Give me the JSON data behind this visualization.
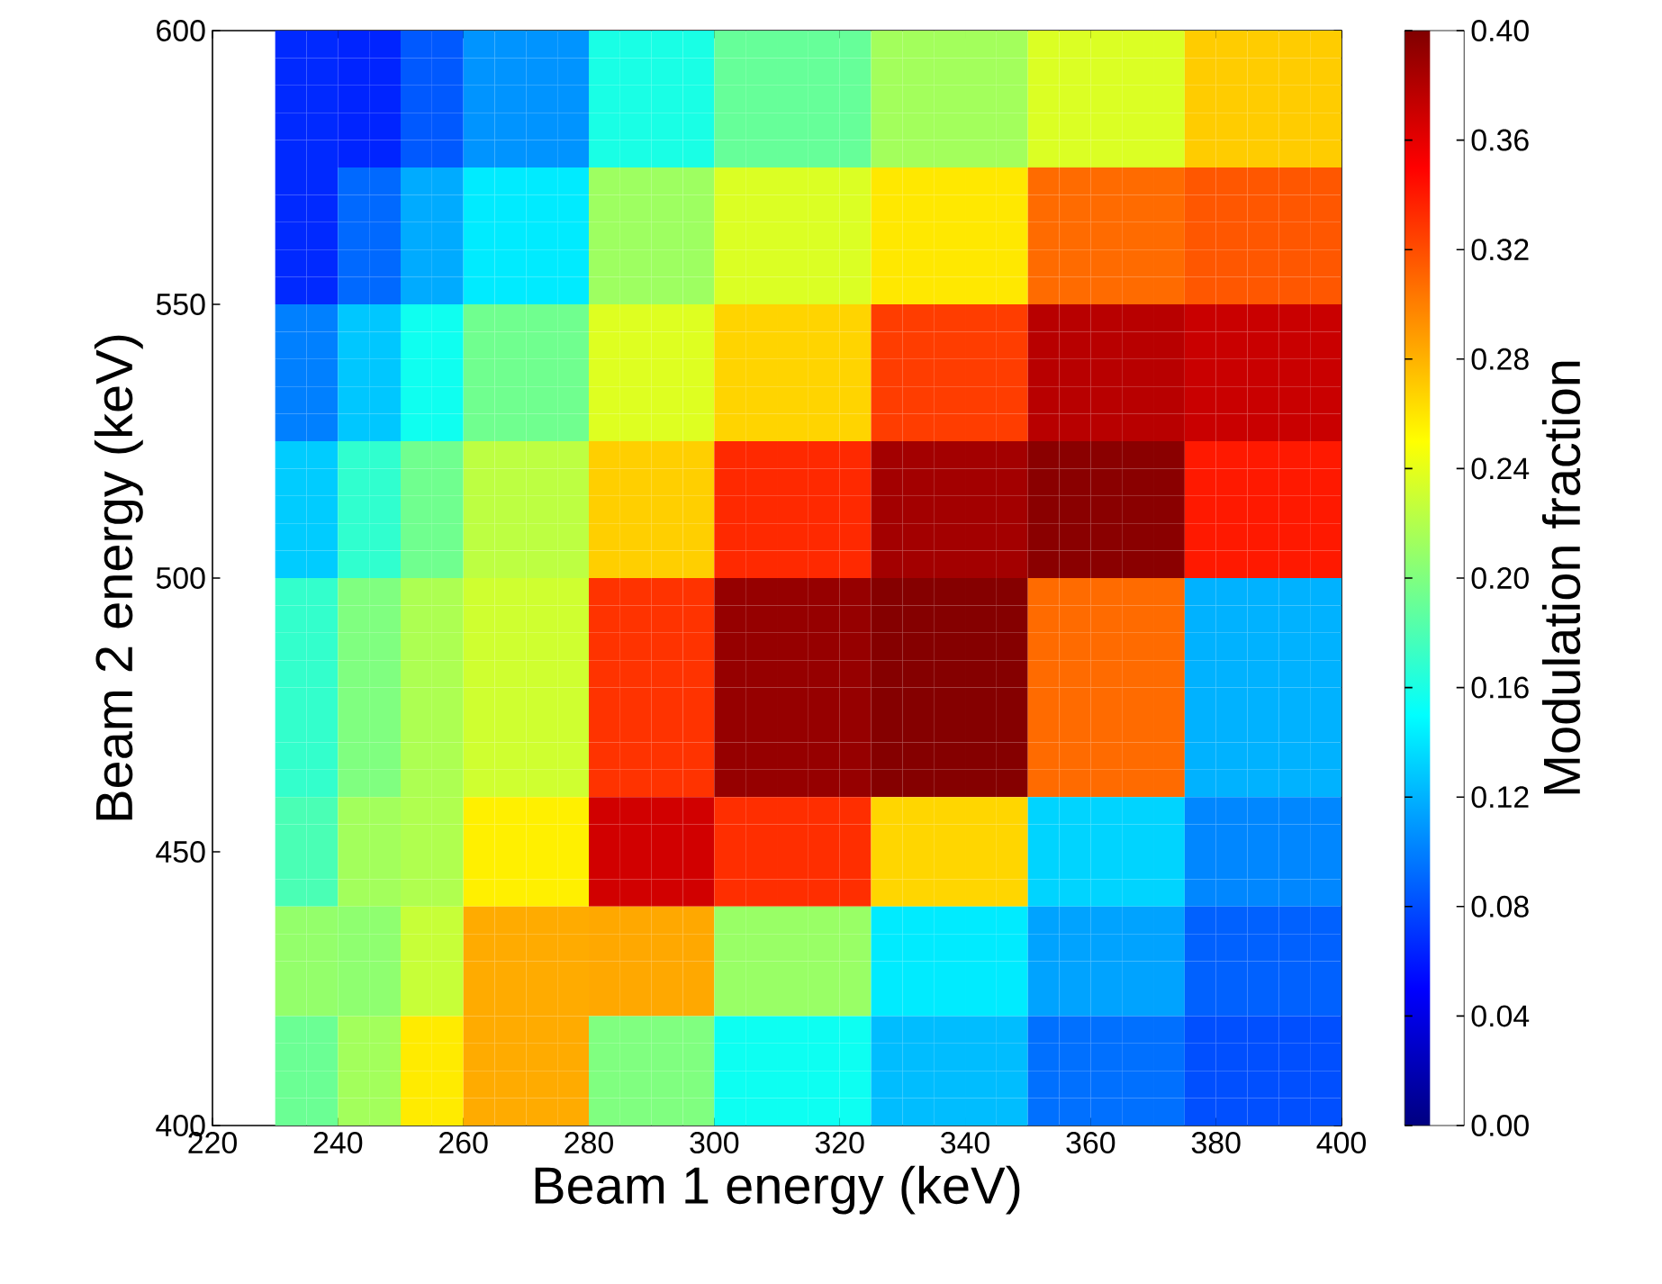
{
  "chart_data": {
    "type": "heatmap",
    "xlabel": "Beam 1 energy (keV)",
    "ylabel": "Beam 2 energy (keV)",
    "clabel": "Modulation fraction",
    "cells": [
      [
        null,
        null,
        0.066,
        0.066,
        0.064,
        0.064,
        0.085,
        0.085,
        0.108,
        0.108,
        0.108,
        0.108,
        0.16,
        0.16,
        0.16,
        0.16,
        0.19,
        0.19,
        0.19,
        0.19,
        0.19,
        0.214,
        0.214,
        0.214,
        0.214,
        0.214,
        0.236,
        0.236,
        0.236,
        0.236,
        0.236,
        0.27,
        0.27,
        0.27,
        0.27,
        0.27
      ],
      [
        null,
        null,
        0.066,
        0.066,
        0.064,
        0.064,
        0.085,
        0.085,
        0.108,
        0.108,
        0.108,
        0.108,
        0.16,
        0.16,
        0.16,
        0.16,
        0.19,
        0.19,
        0.19,
        0.19,
        0.19,
        0.214,
        0.214,
        0.214,
        0.214,
        0.214,
        0.236,
        0.236,
        0.236,
        0.236,
        0.236,
        0.27,
        0.27,
        0.27,
        0.27,
        0.27
      ],
      [
        null,
        null,
        0.066,
        0.066,
        0.064,
        0.064,
        0.085,
        0.085,
        0.108,
        0.108,
        0.108,
        0.108,
        0.16,
        0.16,
        0.16,
        0.16,
        0.19,
        0.19,
        0.19,
        0.19,
        0.19,
        0.214,
        0.214,
        0.214,
        0.214,
        0.214,
        0.236,
        0.236,
        0.236,
        0.236,
        0.236,
        0.27,
        0.27,
        0.27,
        0.27,
        0.27
      ],
      [
        null,
        null,
        0.066,
        0.066,
        0.064,
        0.064,
        0.085,
        0.085,
        0.108,
        0.108,
        0.108,
        0.108,
        0.16,
        0.16,
        0.16,
        0.16,
        0.19,
        0.19,
        0.19,
        0.19,
        0.19,
        0.214,
        0.214,
        0.214,
        0.214,
        0.214,
        0.236,
        0.236,
        0.236,
        0.236,
        0.236,
        0.27,
        0.27,
        0.27,
        0.27,
        0.27
      ],
      [
        null,
        null,
        0.066,
        0.066,
        0.064,
        0.064,
        0.085,
        0.085,
        0.108,
        0.108,
        0.108,
        0.108,
        0.16,
        0.16,
        0.16,
        0.16,
        0.19,
        0.19,
        0.19,
        0.19,
        0.19,
        0.214,
        0.214,
        0.214,
        0.214,
        0.214,
        0.236,
        0.236,
        0.236,
        0.236,
        0.236,
        0.27,
        0.27,
        0.27,
        0.27,
        0.27
      ],
      [
        null,
        null,
        0.066,
        0.066,
        0.091,
        0.091,
        0.117,
        0.117,
        0.142,
        0.142,
        0.142,
        0.142,
        0.212,
        0.212,
        0.212,
        0.212,
        0.236,
        0.236,
        0.236,
        0.236,
        0.236,
        0.259,
        0.259,
        0.259,
        0.259,
        0.259,
        0.308,
        0.308,
        0.308,
        0.308,
        0.308,
        0.316,
        0.316,
        0.316,
        0.316,
        0.316
      ],
      [
        null,
        null,
        0.066,
        0.066,
        0.091,
        0.091,
        0.117,
        0.117,
        0.142,
        0.142,
        0.142,
        0.142,
        0.212,
        0.212,
        0.212,
        0.212,
        0.236,
        0.236,
        0.236,
        0.236,
        0.236,
        0.259,
        0.259,
        0.259,
        0.259,
        0.259,
        0.308,
        0.308,
        0.308,
        0.308,
        0.308,
        0.316,
        0.316,
        0.316,
        0.316,
        0.316
      ],
      [
        null,
        null,
        0.066,
        0.066,
        0.091,
        0.091,
        0.117,
        0.117,
        0.142,
        0.142,
        0.142,
        0.142,
        0.212,
        0.212,
        0.212,
        0.212,
        0.236,
        0.236,
        0.236,
        0.236,
        0.236,
        0.259,
        0.259,
        0.259,
        0.259,
        0.259,
        0.308,
        0.308,
        0.308,
        0.308,
        0.308,
        0.316,
        0.316,
        0.316,
        0.316,
        0.316
      ],
      [
        null,
        null,
        0.066,
        0.066,
        0.091,
        0.091,
        0.117,
        0.117,
        0.142,
        0.142,
        0.142,
        0.142,
        0.212,
        0.212,
        0.212,
        0.212,
        0.236,
        0.236,
        0.236,
        0.236,
        0.236,
        0.259,
        0.259,
        0.259,
        0.259,
        0.259,
        0.308,
        0.308,
        0.308,
        0.308,
        0.308,
        0.316,
        0.316,
        0.316,
        0.316,
        0.316
      ],
      [
        null,
        null,
        0.066,
        0.066,
        0.091,
        0.091,
        0.117,
        0.117,
        0.142,
        0.142,
        0.142,
        0.142,
        0.212,
        0.212,
        0.212,
        0.212,
        0.236,
        0.236,
        0.236,
        0.236,
        0.236,
        0.259,
        0.259,
        0.259,
        0.259,
        0.259,
        0.308,
        0.308,
        0.308,
        0.308,
        0.308,
        0.316,
        0.316,
        0.316,
        0.316,
        0.316
      ],
      [
        null,
        null,
        0.1,
        0.1,
        0.128,
        0.128,
        0.156,
        0.156,
        0.194,
        0.194,
        0.194,
        0.194,
        0.237,
        0.237,
        0.237,
        0.237,
        0.267,
        0.267,
        0.267,
        0.267,
        0.267,
        0.326,
        0.326,
        0.326,
        0.326,
        0.326,
        0.378,
        0.378,
        0.378,
        0.378,
        0.378,
        0.371,
        0.371,
        0.371,
        0.371,
        0.371
      ],
      [
        null,
        null,
        0.1,
        0.1,
        0.128,
        0.128,
        0.156,
        0.156,
        0.194,
        0.194,
        0.194,
        0.194,
        0.237,
        0.237,
        0.237,
        0.237,
        0.267,
        0.267,
        0.267,
        0.267,
        0.267,
        0.326,
        0.326,
        0.326,
        0.326,
        0.326,
        0.378,
        0.378,
        0.378,
        0.378,
        0.378,
        0.371,
        0.371,
        0.371,
        0.371,
        0.371
      ],
      [
        null,
        null,
        0.1,
        0.1,
        0.128,
        0.128,
        0.156,
        0.156,
        0.194,
        0.194,
        0.194,
        0.194,
        0.237,
        0.237,
        0.237,
        0.237,
        0.267,
        0.267,
        0.267,
        0.267,
        0.267,
        0.326,
        0.326,
        0.326,
        0.326,
        0.326,
        0.378,
        0.378,
        0.378,
        0.378,
        0.378,
        0.371,
        0.371,
        0.371,
        0.371,
        0.371
      ],
      [
        null,
        null,
        0.1,
        0.1,
        0.128,
        0.128,
        0.156,
        0.156,
        0.194,
        0.194,
        0.194,
        0.194,
        0.237,
        0.237,
        0.237,
        0.237,
        0.267,
        0.267,
        0.267,
        0.267,
        0.267,
        0.326,
        0.326,
        0.326,
        0.326,
        0.326,
        0.378,
        0.378,
        0.378,
        0.378,
        0.378,
        0.371,
        0.371,
        0.371,
        0.371,
        0.371
      ],
      [
        null,
        null,
        0.1,
        0.1,
        0.128,
        0.128,
        0.156,
        0.156,
        0.194,
        0.194,
        0.194,
        0.194,
        0.237,
        0.237,
        0.237,
        0.237,
        0.267,
        0.267,
        0.267,
        0.267,
        0.267,
        0.326,
        0.326,
        0.326,
        0.326,
        0.326,
        0.378,
        0.378,
        0.378,
        0.378,
        0.378,
        0.371,
        0.371,
        0.371,
        0.371,
        0.371
      ],
      [
        null,
        null,
        0.13,
        0.13,
        0.169,
        0.169,
        0.194,
        0.194,
        0.224,
        0.224,
        0.224,
        0.224,
        0.269,
        0.269,
        0.269,
        0.269,
        0.334,
        0.334,
        0.334,
        0.334,
        0.334,
        0.386,
        0.386,
        0.386,
        0.386,
        0.386,
        0.396,
        0.396,
        0.396,
        0.396,
        0.396,
        0.34,
        0.34,
        0.34,
        0.34,
        0.34
      ],
      [
        null,
        null,
        0.13,
        0.13,
        0.169,
        0.169,
        0.194,
        0.194,
        0.224,
        0.224,
        0.224,
        0.224,
        0.269,
        0.269,
        0.269,
        0.269,
        0.334,
        0.334,
        0.334,
        0.334,
        0.334,
        0.386,
        0.386,
        0.386,
        0.386,
        0.386,
        0.396,
        0.396,
        0.396,
        0.396,
        0.396,
        0.34,
        0.34,
        0.34,
        0.34,
        0.34
      ],
      [
        null,
        null,
        0.13,
        0.13,
        0.169,
        0.169,
        0.194,
        0.194,
        0.224,
        0.224,
        0.224,
        0.224,
        0.269,
        0.269,
        0.269,
        0.269,
        0.334,
        0.334,
        0.334,
        0.334,
        0.334,
        0.386,
        0.386,
        0.386,
        0.386,
        0.386,
        0.396,
        0.396,
        0.396,
        0.396,
        0.396,
        0.34,
        0.34,
        0.34,
        0.34,
        0.34
      ],
      [
        null,
        null,
        0.13,
        0.13,
        0.169,
        0.169,
        0.194,
        0.194,
        0.224,
        0.224,
        0.224,
        0.224,
        0.269,
        0.269,
        0.269,
        0.269,
        0.334,
        0.334,
        0.334,
        0.334,
        0.334,
        0.386,
        0.386,
        0.386,
        0.386,
        0.386,
        0.396,
        0.396,
        0.396,
        0.396,
        0.396,
        0.34,
        0.34,
        0.34,
        0.34,
        0.34
      ],
      [
        null,
        null,
        0.13,
        0.13,
        0.169,
        0.169,
        0.194,
        0.194,
        0.224,
        0.224,
        0.224,
        0.224,
        0.269,
        0.269,
        0.269,
        0.269,
        0.334,
        0.334,
        0.334,
        0.334,
        0.334,
        0.386,
        0.386,
        0.386,
        0.386,
        0.386,
        0.396,
        0.396,
        0.396,
        0.396,
        0.396,
        0.34,
        0.34,
        0.34,
        0.34,
        0.34
      ],
      [
        null,
        null,
        0.17,
        0.17,
        0.2,
        0.2,
        0.218,
        0.218,
        0.231,
        0.231,
        0.231,
        0.231,
        0.33,
        0.33,
        0.33,
        0.33,
        0.391,
        0.391,
        0.391,
        0.391,
        0.391,
        0.398,
        0.398,
        0.398,
        0.398,
        0.398,
        0.308,
        0.308,
        0.308,
        0.308,
        0.308,
        0.12,
        0.12,
        0.12,
        0.12,
        0.12
      ],
      [
        null,
        null,
        0.17,
        0.17,
        0.2,
        0.2,
        0.218,
        0.218,
        0.231,
        0.231,
        0.231,
        0.231,
        0.33,
        0.33,
        0.33,
        0.33,
        0.391,
        0.391,
        0.391,
        0.391,
        0.391,
        0.398,
        0.398,
        0.398,
        0.398,
        0.398,
        0.308,
        0.308,
        0.308,
        0.308,
        0.308,
        0.12,
        0.12,
        0.12,
        0.12,
        0.12
      ],
      [
        null,
        null,
        0.17,
        0.17,
        0.2,
        0.2,
        0.218,
        0.218,
        0.231,
        0.231,
        0.231,
        0.231,
        0.33,
        0.33,
        0.33,
        0.33,
        0.391,
        0.391,
        0.391,
        0.391,
        0.391,
        0.398,
        0.398,
        0.398,
        0.398,
        0.398,
        0.308,
        0.308,
        0.308,
        0.308,
        0.308,
        0.12,
        0.12,
        0.12,
        0.12,
        0.12
      ],
      [
        null,
        null,
        0.17,
        0.17,
        0.2,
        0.2,
        0.218,
        0.218,
        0.231,
        0.231,
        0.231,
        0.231,
        0.33,
        0.33,
        0.33,
        0.33,
        0.391,
        0.391,
        0.391,
        0.391,
        0.391,
        0.398,
        0.398,
        0.398,
        0.398,
        0.398,
        0.308,
        0.308,
        0.308,
        0.308,
        0.308,
        0.12,
        0.12,
        0.12,
        0.12,
        0.12
      ],
      [
        null,
        null,
        0.17,
        0.17,
        0.2,
        0.2,
        0.218,
        0.218,
        0.231,
        0.231,
        0.231,
        0.231,
        0.33,
        0.33,
        0.33,
        0.33,
        0.391,
        0.391,
        0.391,
        0.391,
        0.391,
        0.398,
        0.398,
        0.398,
        0.398,
        0.398,
        0.308,
        0.308,
        0.308,
        0.308,
        0.308,
        0.12,
        0.12,
        0.12,
        0.12,
        0.12
      ],
      [
        null,
        null,
        0.17,
        0.17,
        0.2,
        0.2,
        0.218,
        0.218,
        0.231,
        0.231,
        0.231,
        0.231,
        0.33,
        0.33,
        0.33,
        0.33,
        0.391,
        0.391,
        0.391,
        0.391,
        0.391,
        0.398,
        0.398,
        0.398,
        0.398,
        0.398,
        0.308,
        0.308,
        0.308,
        0.308,
        0.308,
        0.12,
        0.12,
        0.12,
        0.12,
        0.12
      ],
      [
        null,
        null,
        0.17,
        0.17,
        0.2,
        0.2,
        0.218,
        0.218,
        0.231,
        0.231,
        0.231,
        0.231,
        0.33,
        0.33,
        0.33,
        0.33,
        0.391,
        0.391,
        0.391,
        0.391,
        0.391,
        0.398,
        0.398,
        0.398,
        0.398,
        0.398,
        0.308,
        0.308,
        0.308,
        0.308,
        0.308,
        0.12,
        0.12,
        0.12,
        0.12,
        0.12
      ],
      [
        null,
        null,
        0.17,
        0.17,
        0.2,
        0.2,
        0.218,
        0.218,
        0.231,
        0.231,
        0.231,
        0.231,
        0.33,
        0.33,
        0.33,
        0.33,
        0.391,
        0.391,
        0.391,
        0.391,
        0.391,
        0.398,
        0.398,
        0.398,
        0.398,
        0.398,
        0.308,
        0.308,
        0.308,
        0.308,
        0.308,
        0.12,
        0.12,
        0.12,
        0.12,
        0.12
      ],
      [
        null,
        null,
        0.179,
        0.179,
        0.214,
        0.214,
        0.219,
        0.219,
        0.256,
        0.256,
        0.256,
        0.256,
        0.368,
        0.368,
        0.368,
        0.368,
        0.332,
        0.332,
        0.332,
        0.332,
        0.332,
        0.266,
        0.266,
        0.266,
        0.266,
        0.266,
        0.133,
        0.133,
        0.133,
        0.133,
        0.133,
        0.103,
        0.103,
        0.103,
        0.103,
        0.103
      ],
      [
        null,
        null,
        0.179,
        0.179,
        0.214,
        0.214,
        0.219,
        0.219,
        0.256,
        0.256,
        0.256,
        0.256,
        0.368,
        0.368,
        0.368,
        0.368,
        0.332,
        0.332,
        0.332,
        0.332,
        0.332,
        0.266,
        0.266,
        0.266,
        0.266,
        0.266,
        0.133,
        0.133,
        0.133,
        0.133,
        0.133,
        0.103,
        0.103,
        0.103,
        0.103,
        0.103
      ],
      [
        null,
        null,
        0.179,
        0.179,
        0.214,
        0.214,
        0.219,
        0.219,
        0.256,
        0.256,
        0.256,
        0.256,
        0.368,
        0.368,
        0.368,
        0.368,
        0.332,
        0.332,
        0.332,
        0.332,
        0.332,
        0.266,
        0.266,
        0.266,
        0.266,
        0.266,
        0.133,
        0.133,
        0.133,
        0.133,
        0.133,
        0.103,
        0.103,
        0.103,
        0.103,
        0.103
      ],
      [
        null,
        null,
        0.179,
        0.179,
        0.214,
        0.214,
        0.219,
        0.219,
        0.256,
        0.256,
        0.256,
        0.256,
        0.368,
        0.368,
        0.368,
        0.368,
        0.332,
        0.332,
        0.332,
        0.332,
        0.332,
        0.266,
        0.266,
        0.266,
        0.266,
        0.266,
        0.133,
        0.133,
        0.133,
        0.133,
        0.133,
        0.103,
        0.103,
        0.103,
        0.103,
        0.103
      ],
      [
        null,
        null,
        0.208,
        0.208,
        0.206,
        0.206,
        0.228,
        0.228,
        0.283,
        0.283,
        0.283,
        0.283,
        0.284,
        0.284,
        0.284,
        0.284,
        0.21,
        0.21,
        0.21,
        0.21,
        0.21,
        0.142,
        0.142,
        0.142,
        0.142,
        0.142,
        0.114,
        0.114,
        0.114,
        0.114,
        0.114,
        0.088,
        0.088,
        0.088,
        0.088,
        0.088
      ],
      [
        null,
        null,
        0.208,
        0.208,
        0.206,
        0.206,
        0.228,
        0.228,
        0.283,
        0.283,
        0.283,
        0.283,
        0.284,
        0.284,
        0.284,
        0.284,
        0.21,
        0.21,
        0.21,
        0.21,
        0.21,
        0.142,
        0.142,
        0.142,
        0.142,
        0.142,
        0.114,
        0.114,
        0.114,
        0.114,
        0.114,
        0.088,
        0.088,
        0.088,
        0.088,
        0.088
      ],
      [
        null,
        null,
        0.208,
        0.208,
        0.206,
        0.206,
        0.228,
        0.228,
        0.283,
        0.283,
        0.283,
        0.283,
        0.284,
        0.284,
        0.284,
        0.284,
        0.21,
        0.21,
        0.21,
        0.21,
        0.21,
        0.142,
        0.142,
        0.142,
        0.142,
        0.142,
        0.114,
        0.114,
        0.114,
        0.114,
        0.114,
        0.088,
        0.088,
        0.088,
        0.088,
        0.088
      ],
      [
        null,
        null,
        0.208,
        0.208,
        0.206,
        0.206,
        0.228,
        0.228,
        0.283,
        0.283,
        0.283,
        0.283,
        0.284,
        0.284,
        0.284,
        0.284,
        0.21,
        0.21,
        0.21,
        0.21,
        0.21,
        0.142,
        0.142,
        0.142,
        0.142,
        0.142,
        0.114,
        0.114,
        0.114,
        0.114,
        0.114,
        0.088,
        0.088,
        0.088,
        0.088,
        0.088
      ],
      [
        null,
        null,
        0.192,
        0.192,
        0.214,
        0.214,
        0.258,
        0.258,
        0.283,
        0.283,
        0.283,
        0.283,
        0.2,
        0.2,
        0.2,
        0.2,
        0.155,
        0.155,
        0.155,
        0.155,
        0.155,
        0.124,
        0.124,
        0.124,
        0.124,
        0.124,
        0.094,
        0.094,
        0.094,
        0.094,
        0.094,
        0.081,
        0.081,
        0.081,
        0.081,
        0.081
      ],
      [
        null,
        null,
        0.192,
        0.192,
        0.214,
        0.214,
        0.258,
        0.258,
        0.283,
        0.283,
        0.283,
        0.283,
        0.2,
        0.2,
        0.2,
        0.2,
        0.155,
        0.155,
        0.155,
        0.155,
        0.155,
        0.124,
        0.124,
        0.124,
        0.124,
        0.124,
        0.094,
        0.094,
        0.094,
        0.094,
        0.094,
        0.081,
        0.081,
        0.081,
        0.081,
        0.081
      ],
      [
        null,
        null,
        0.192,
        0.192,
        0.214,
        0.214,
        0.258,
        0.258,
        0.283,
        0.283,
        0.283,
        0.283,
        0.2,
        0.2,
        0.2,
        0.2,
        0.155,
        0.155,
        0.155,
        0.155,
        0.155,
        0.124,
        0.124,
        0.124,
        0.124,
        0.124,
        0.094,
        0.094,
        0.094,
        0.094,
        0.094,
        0.081,
        0.081,
        0.081,
        0.081,
        0.081
      ],
      [
        null,
        null,
        0.192,
        0.192,
        0.214,
        0.214,
        0.258,
        0.258,
        0.283,
        0.283,
        0.283,
        0.283,
        0.2,
        0.2,
        0.2,
        0.2,
        0.155,
        0.155,
        0.155,
        0.155,
        0.155,
        0.124,
        0.124,
        0.124,
        0.124,
        0.124,
        0.094,
        0.094,
        0.094,
        0.094,
        0.094,
        0.081,
        0.081,
        0.081,
        0.081,
        0.081
      ]
    ],
    "xlim": [
      220,
      400
    ],
    "ylim": [
      400,
      600
    ],
    "xticks": [
      220,
      240,
      260,
      280,
      300,
      320,
      340,
      360,
      380,
      400
    ],
    "yticks": [
      400,
      450,
      500,
      550,
      600
    ],
    "clim": [
      0,
      0.4
    ],
    "cticks": [
      {
        "value": 0,
        "label": "0.00"
      },
      {
        "value": 0.04,
        "label": "0.04"
      },
      {
        "value": 0.08,
        "label": "0.08"
      },
      {
        "value": 0.12,
        "label": "0.12"
      },
      {
        "value": 0.16,
        "label": "0.16"
      },
      {
        "value": 0.2,
        "label": "0.20"
      },
      {
        "value": 0.24,
        "label": "0.24"
      },
      {
        "value": 0.28,
        "label": "0.28"
      },
      {
        "value": 0.32,
        "label": "0.32"
      },
      {
        "value": 0.36,
        "label": "0.36"
      },
      {
        "value": 0.4,
        "label": "0.40"
      }
    ]
  }
}
